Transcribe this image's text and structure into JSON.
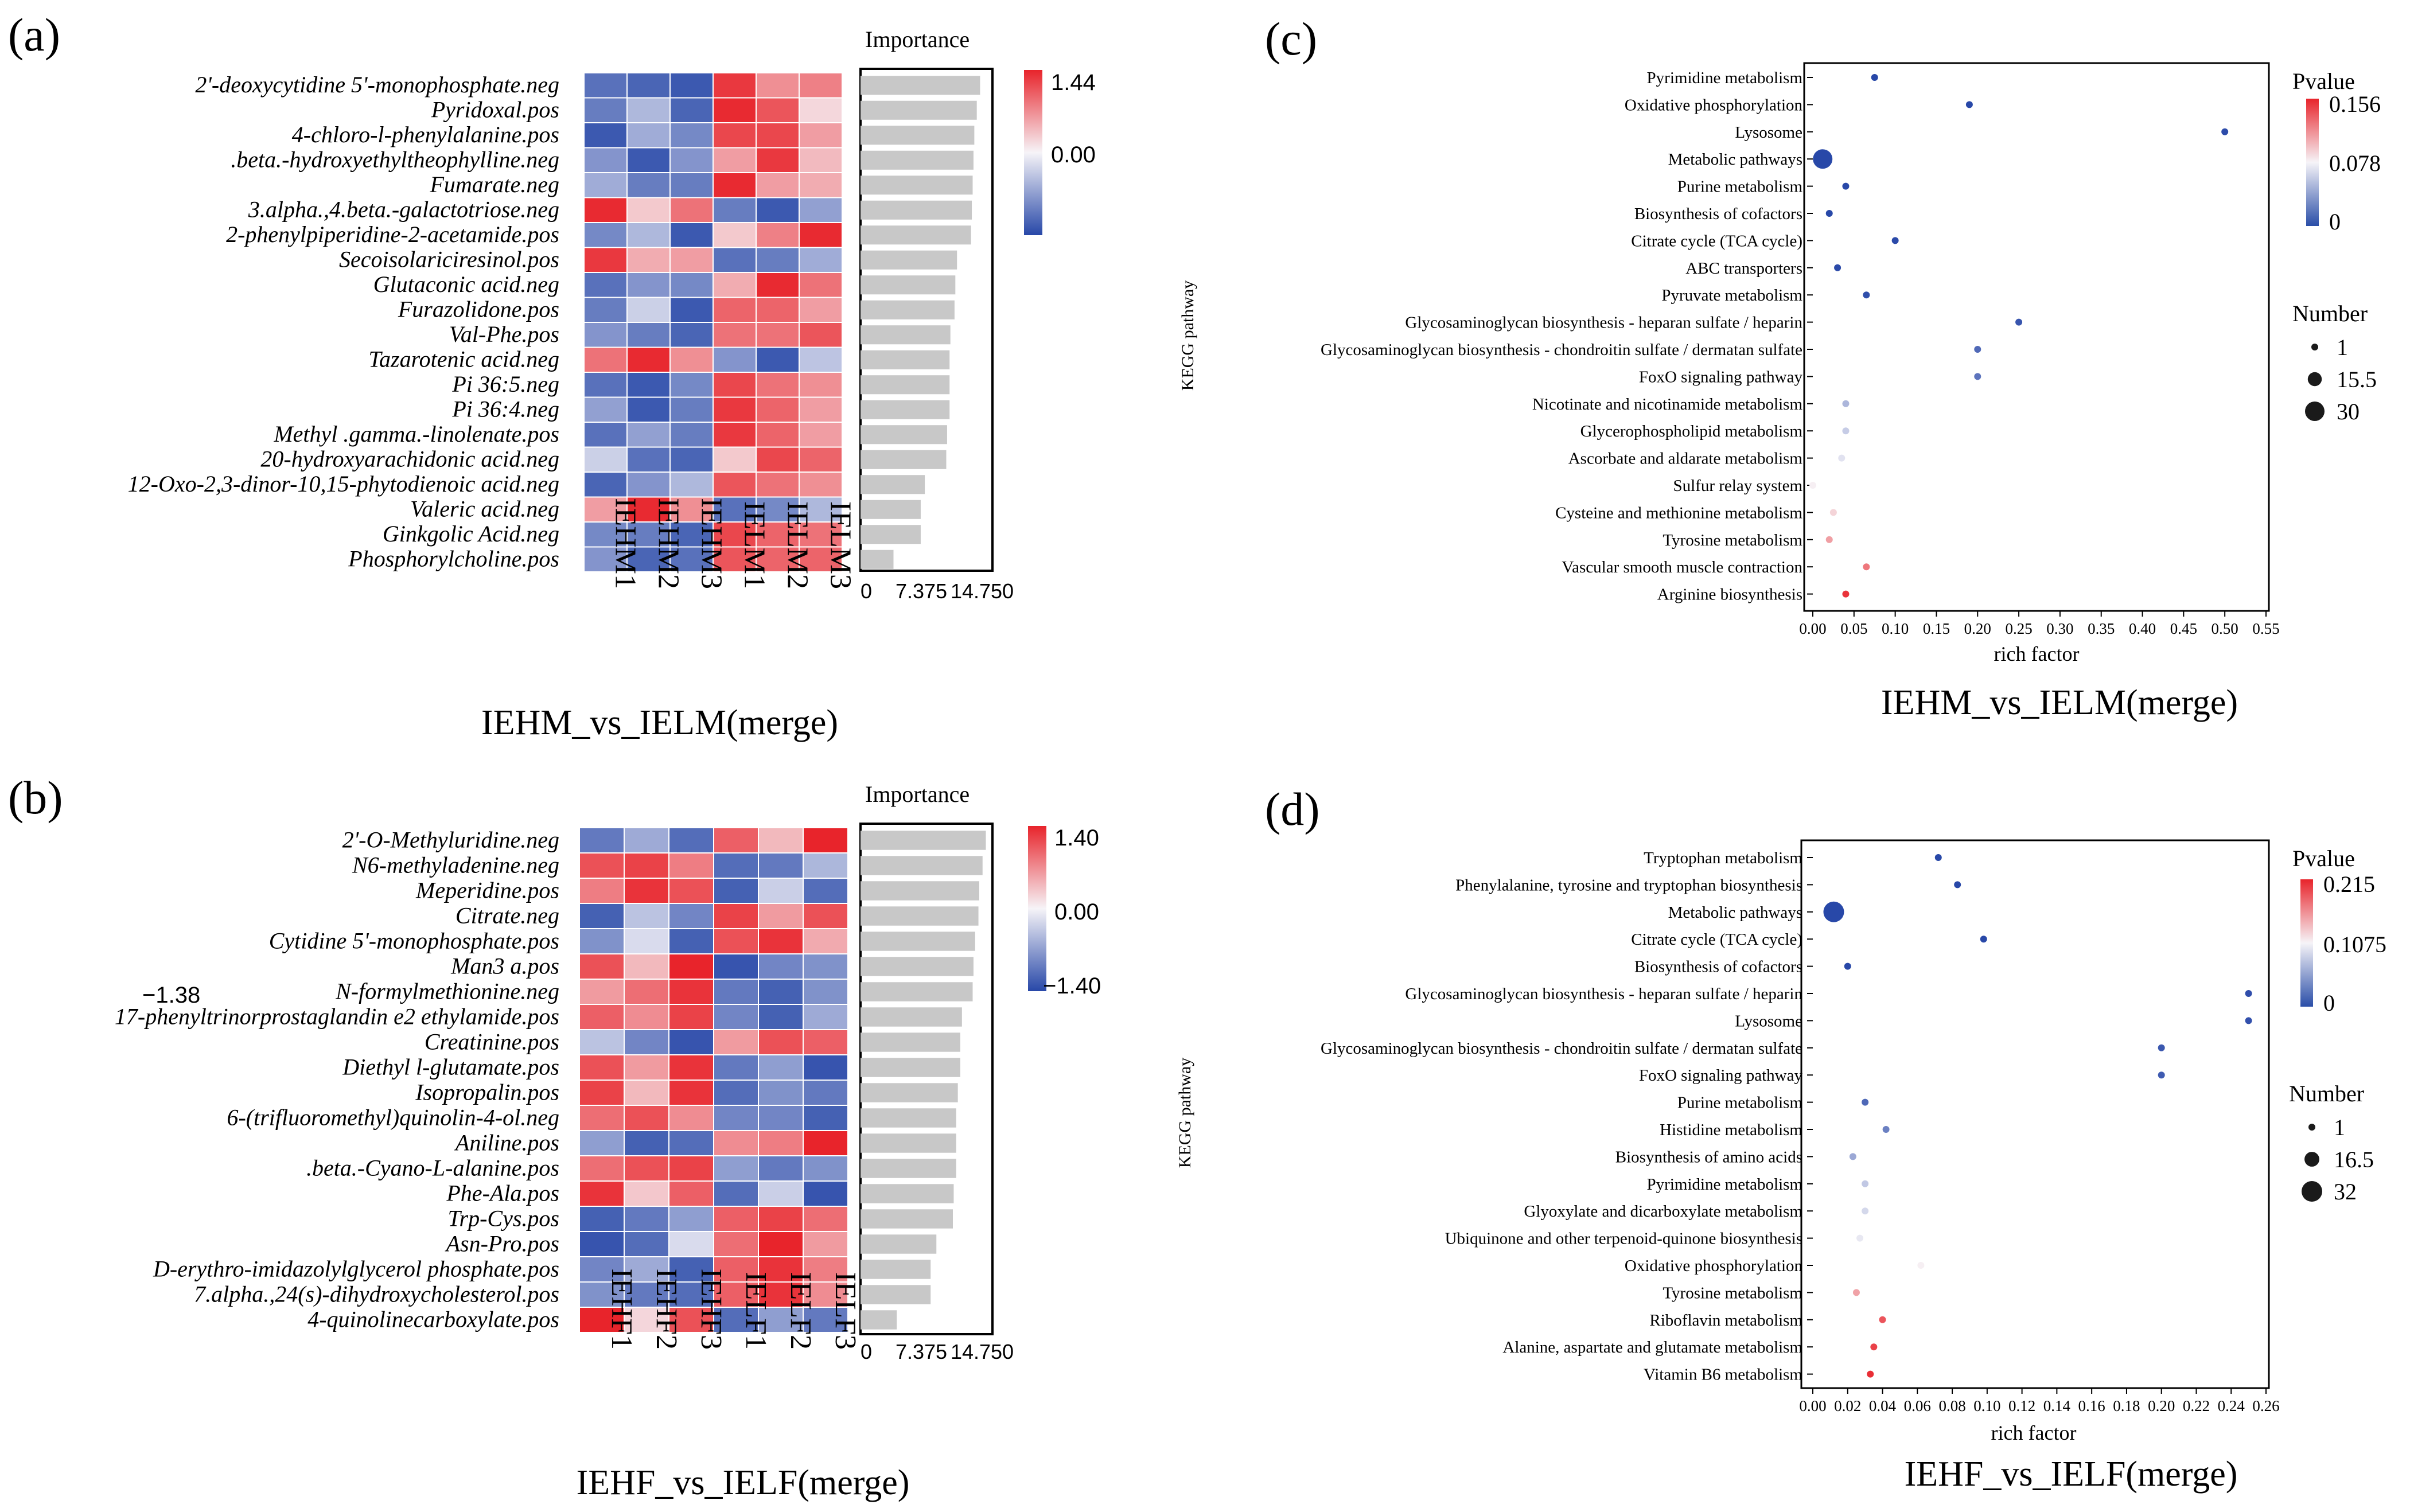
{
  "chart_data": [
    {
      "panel": "(a)",
      "type": "heatmap",
      "title": "IEHM_vs_IELM(merge)",
      "rows": [
        "2'-deoxycytidine 5'-monophosphate.neg",
        "Pyridoxal.pos",
        "4-chloro-l-phenylalanine.pos",
        ".beta.-hydroxyethyltheophylline.neg",
        "Fumarate.neg",
        "3.alpha.,4.beta.-galactotriose.neg",
        "2-phenylpiperidine-2-acetamide.pos",
        "Secoisolariciresinol.pos",
        "Glutaconic acid.neg",
        "Furazolidone.pos",
        "Val-Phe.pos",
        "Tazarotenic acid.neg",
        "Pi 36:5.neg",
        "Pi 36:4.neg",
        "Methyl .gamma.-linolenate.pos",
        "20-hydroxyarachidonic acid.neg",
        "12-Oxo-2,3-dinor-10,15-phytodienoic acid.neg",
        "Valeric acid.neg",
        "Ginkgolic Acid.neg",
        "Phosphorylcholine.pos"
      ],
      "columns": [
        "IEHM1",
        "IEHM2",
        "IEHM3",
        "IELM1",
        "IELM2",
        "IELM3"
      ],
      "values": [
        [
          -1.1,
          -1.2,
          -1.3,
          1.3,
          0.7,
          0.8
        ],
        [
          -1.0,
          -0.5,
          -1.2,
          1.4,
          1.1,
          0.2
        ],
        [
          -1.3,
          -0.6,
          -0.9,
          1.2,
          1.2,
          0.6
        ],
        [
          -0.8,
          -1.3,
          -0.8,
          0.6,
          1.3,
          0.4
        ],
        [
          -0.6,
          -1.0,
          -1.0,
          1.4,
          0.6,
          0.5
        ],
        [
          1.4,
          0.3,
          0.9,
          -1.0,
          -1.3,
          -0.7
        ],
        [
          -0.9,
          -0.5,
          -1.3,
          0.3,
          0.8,
          1.4
        ],
        [
          1.3,
          0.5,
          0.6,
          -1.1,
          -1.0,
          -0.6
        ],
        [
          -1.1,
          -0.8,
          -0.9,
          0.5,
          1.4,
          0.9
        ],
        [
          -1.0,
          -0.3,
          -1.3,
          1.0,
          1.0,
          0.6
        ],
        [
          -0.8,
          -1.0,
          -1.2,
          0.9,
          0.9,
          1.1
        ],
        [
          0.9,
          1.4,
          0.7,
          -0.8,
          -1.3,
          -0.4
        ],
        [
          -1.1,
          -1.3,
          -0.9,
          1.2,
          0.9,
          0.7
        ],
        [
          -0.7,
          -1.3,
          -1.0,
          1.3,
          1.0,
          0.6
        ],
        [
          -1.1,
          -0.7,
          -1.0,
          1.3,
          1.0,
          0.6
        ],
        [
          -0.3,
          -1.1,
          -1.2,
          0.3,
          1.2,
          1.0
        ],
        [
          -1.2,
          -0.8,
          -0.5,
          1.1,
          0.9,
          0.7
        ],
        [
          0.6,
          1.4,
          0.7,
          -1.1,
          -0.9,
          -0.5
        ],
        [
          -0.9,
          -1.0,
          -1.2,
          1.2,
          1.0,
          0.9
        ],
        [
          -0.8,
          -1.2,
          -1.1,
          1.1,
          1.0,
          1.0
        ]
      ],
      "colorbar": {
        "max_label": "1.44",
        "mid_label": "0.00",
        "min": -1.44,
        "max": 1.44
      },
      "importance": {
        "label": "Importance",
        "values": [
          14.5,
          14.1,
          13.8,
          13.7,
          13.6,
          13.5,
          13.4,
          11.7,
          11.5,
          11.4,
          10.9,
          10.8,
          10.8,
          10.8,
          10.5,
          10.4,
          7.8,
          7.3,
          7.3,
          4.0
        ],
        "range": [
          0,
          16.0
        ],
        "ticks": [
          "0",
          "7.375",
          "14.750"
        ],
        "tick_values": [
          0,
          7.375,
          14.75
        ]
      }
    },
    {
      "panel": "(b)",
      "type": "heatmap",
      "title": "IEHF_vs_IELF(merge)",
      "rows": [
        "2'-O-Methyluridine.neg",
        "N6-methyladenine.neg",
        "Meperidine.pos",
        "Citrate.neg",
        "Cytidine 5'-monophosphate.pos",
        "Man3 a.pos",
        "N-formylmethionine.neg",
        "17-phenyltrinorprostaglandin e2 ethylamide.pos",
        "Creatinine.pos",
        "Diethyl l-glutamate.pos",
        "Isopropalin.pos",
        "6-(trifluoromethyl)quinolin-4-ol.neg",
        "Aniline.pos",
        ".beta.-Cyano-L-alanine.pos",
        "Phe-Ala.pos",
        "Trp-Cys.pos",
        "Asn-Pro.pos",
        "D-erythro-imidazolylglycerol phosphate.pos",
        "7.alpha.,24(s)-dihydroxycholesterol.pos",
        "4-quinolinecarboxylate.pos"
      ],
      "columns": [
        "IEHF1",
        "IEHF2",
        "IEHF3",
        "IELF1",
        "IELF2",
        "IELF3"
      ],
      "values": [
        [
          -1.0,
          -0.6,
          -1.1,
          1.0,
          0.4,
          1.4
        ],
        [
          1.1,
          1.2,
          0.8,
          -1.1,
          -1.0,
          -0.5
        ],
        [
          0.8,
          1.3,
          1.1,
          -1.2,
          -0.3,
          -1.1
        ],
        [
          -1.2,
          -0.4,
          -0.9,
          1.2,
          0.6,
          1.1
        ],
        [
          -0.8,
          -0.2,
          -1.2,
          1.1,
          1.3,
          0.5
        ],
        [
          1.1,
          0.4,
          1.4,
          -1.3,
          -0.9,
          -0.8
        ],
        [
          0.6,
          0.9,
          1.3,
          -1.0,
          -1.2,
          -0.8
        ],
        [
          1.0,
          0.7,
          1.2,
          -0.9,
          -1.2,
          -0.6
        ],
        [
          -0.4,
          -0.9,
          -1.3,
          0.6,
          1.1,
          1.0
        ],
        [
          1.1,
          0.6,
          1.3,
          -1.0,
          -0.7,
          -1.3
        ],
        [
          1.2,
          0.4,
          1.3,
          -1.1,
          -0.8,
          -1.0
        ],
        [
          0.9,
          1.1,
          0.7,
          -0.9,
          -0.9,
          -1.2
        ],
        [
          -0.7,
          -1.2,
          -1.1,
          0.7,
          0.8,
          1.4
        ],
        [
          0.9,
          1.1,
          1.2,
          -0.7,
          -1.0,
          -0.8
        ],
        [
          1.3,
          0.3,
          1.0,
          -1.1,
          -0.3,
          -1.3
        ],
        [
          -1.2,
          -1.0,
          -0.7,
          1.0,
          1.2,
          0.9
        ],
        [
          -1.3,
          -1.1,
          -0.2,
          0.9,
          1.4,
          0.6
        ],
        [
          -0.9,
          -0.6,
          -1.2,
          1.0,
          1.3,
          0.8
        ],
        [
          -0.8,
          -1.0,
          -1.1,
          1.0,
          1.3,
          0.7
        ],
        [
          1.4,
          0.2,
          1.1,
          -1.1,
          -0.7,
          -1.0
        ]
      ],
      "colorbar": {
        "max_label": "1.40",
        "mid_label": "0.00",
        "min_label": "−1.40",
        "min": -1.4,
        "max": 1.4
      },
      "stray_label": "−1.38",
      "importance": {
        "label": "Importance",
        "values": [
          15.2,
          14.8,
          14.4,
          14.3,
          13.9,
          13.7,
          13.6,
          12.3,
          12.1,
          12.1,
          11.8,
          11.6,
          11.6,
          11.6,
          11.3,
          11.2,
          9.2,
          8.5,
          8.5,
          4.4
        ],
        "range": [
          0,
          16.0
        ],
        "ticks": [
          "0",
          "7.375",
          "14.750"
        ],
        "tick_values": [
          0,
          7.375,
          14.75
        ]
      }
    },
    {
      "panel": "(c)",
      "type": "scatter",
      "title": "IEHM_vs_IELM(merge)",
      "xlabel": "rich factor",
      "ylabel": "KEGG pathway",
      "xlim": [
        0,
        0.55
      ],
      "xticks": [
        0,
        0.05,
        0.1,
        0.15,
        0.2,
        0.25,
        0.3,
        0.35,
        0.4,
        0.45,
        0.5,
        0.55
      ],
      "xtick_labels": [
        "0.00",
        "0.05",
        "0.10",
        "0.15",
        "0.20",
        "0.25",
        "0.30",
        "0.35",
        "0.40",
        "0.45",
        "0.50",
        "0.55"
      ],
      "categories": [
        "Pyrimidine metabolism",
        "Oxidative phosphorylation",
        "Lysosome",
        "Metabolic pathways",
        "Purine metabolism",
        "Biosynthesis of cofactors",
        "Citrate cycle (TCA cycle)",
        "ABC transporters",
        "Pyruvate metabolism",
        "Glycosaminoglycan biosynthesis - heparan sulfate / heparin",
        "Glycosaminoglycan biosynthesis - chondroitin sulfate / dermatan sulfate",
        "FoxO signaling pathway",
        "Nicotinate and nicotinamide metabolism",
        "Glycerophospholipid metabolism",
        "Ascorbate and aldarate metabolism",
        "Sulfur relay system",
        "Cysteine and methionine metabolism",
        "Tyrosine metabolism",
        "Vascular smooth muscle contraction",
        "Arginine biosynthesis"
      ],
      "x": [
        0.075,
        0.19,
        0.5,
        0.012,
        0.04,
        0.02,
        0.1,
        0.03,
        0.065,
        0.25,
        0.2,
        0.2,
        0.04,
        0.04,
        0.035,
        0.0,
        0.025,
        0.02,
        0.065,
        0.04
      ],
      "pvalue": [
        0.0,
        0.0,
        0.002,
        0.0,
        0.0,
        0.0,
        0.001,
        0.001,
        0.003,
        0.006,
        0.015,
        0.02,
        0.05,
        0.06,
        0.07,
        0.08,
        0.09,
        0.11,
        0.125,
        0.15
      ],
      "count": [
        2,
        2,
        1,
        30,
        2,
        3,
        2,
        2,
        2,
        1,
        1,
        1,
        2,
        2,
        2,
        1,
        1,
        2,
        1,
        2
      ],
      "pvalue_legend": {
        "title": "Pvalue",
        "labels": [
          "0.156",
          "0.078",
          "0"
        ],
        "max": 0.156
      },
      "number_legend": {
        "title": "Number",
        "labels": [
          "1",
          "15.5",
          "30"
        ],
        "values": [
          1,
          15.5,
          30
        ],
        "max": 30
      }
    },
    {
      "panel": "(d)",
      "type": "scatter",
      "title": "IEHF_vs_IELF(merge)",
      "xlabel": "rich factor",
      "ylabel": "KEGG pathway",
      "xlim": [
        0,
        0.26
      ],
      "xticks": [
        0,
        0.02,
        0.04,
        0.06,
        0.08,
        0.1,
        0.12,
        0.14,
        0.16,
        0.18,
        0.2,
        0.22,
        0.24,
        0.26
      ],
      "xtick_labels": [
        "0.00",
        "0.02",
        "0.04",
        "0.06",
        "0.08",
        "0.10",
        "0.12",
        "0.14",
        "0.16",
        "0.18",
        "0.20",
        "0.22",
        "0.24",
        "0.26"
      ],
      "categories": [
        "Tryptophan metabolism",
        "Phenylalanine, tyrosine and tryptophan biosynthesis",
        "Metabolic pathways",
        "Citrate cycle (TCA cycle)",
        "Biosynthesis of cofactors",
        "Glycosaminoglycan biosynthesis - heparan sulfate / heparin",
        "Lysosome",
        "Glycosaminoglycan biosynthesis - chondroitin sulfate / dermatan sulfate",
        "FoxO signaling pathway",
        "Purine metabolism",
        "Histidine metabolism",
        "Biosynthesis of amino acids",
        "Pyrimidine metabolism",
        "Glyoxylate and dicarboxylate metabolism",
        "Ubiquinone and other terpenoid-quinone biosynthesis",
        "Oxidative phosphorylation",
        "Tyrosine metabolism",
        "Riboflavin metabolism",
        "Alanine, aspartate and glutamate metabolism",
        "Vitamin B6 metabolism"
      ],
      "x": [
        0.072,
        0.083,
        0.012,
        0.098,
        0.02,
        0.25,
        0.25,
        0.2,
        0.2,
        0.03,
        0.042,
        0.023,
        0.03,
        0.03,
        0.027,
        0.062,
        0.025,
        0.04,
        0.035,
        0.033
      ],
      "pvalue": [
        0.0,
        0.0,
        0.0,
        0.0,
        0.0,
        0.004,
        0.005,
        0.01,
        0.012,
        0.02,
        0.035,
        0.06,
        0.08,
        0.09,
        0.1,
        0.11,
        0.15,
        0.19,
        0.2,
        0.21
      ],
      "count": [
        2,
        2,
        32,
        2,
        3,
        1,
        1,
        1,
        1,
        2,
        2,
        2,
        1,
        1,
        1,
        1,
        2,
        2,
        2,
        2
      ],
      "pvalue_legend": {
        "title": "Pvalue",
        "labels": [
          "0.215",
          "0.1075",
          "0"
        ],
        "max": 0.215
      },
      "number_legend": {
        "title": "Number",
        "labels": [
          "1",
          "16.5",
          "32"
        ],
        "values": [
          1,
          16.5,
          32
        ],
        "max": 32
      }
    }
  ]
}
